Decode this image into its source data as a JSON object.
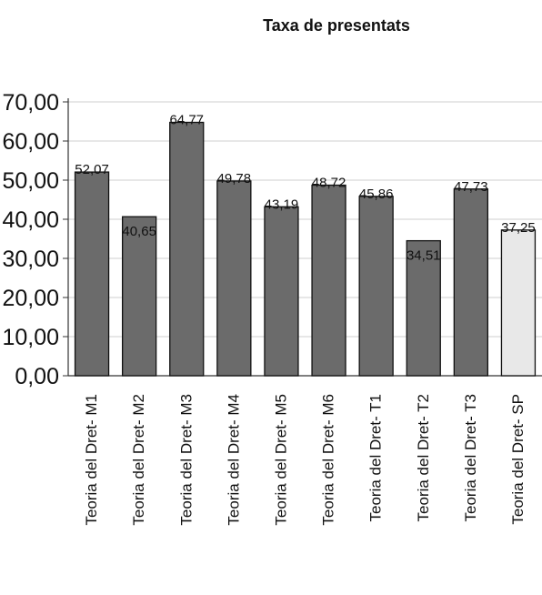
{
  "chart_data": {
    "type": "bar",
    "title": "Taxa de presentats",
    "xlabel": "",
    "ylabel": "",
    "ylim": [
      0,
      70
    ],
    "grid": true,
    "legend": "none",
    "y_ticks": [
      "0,00",
      "10,00",
      "20,00",
      "30,00",
      "40,00",
      "50,00",
      "60,00",
      "70,00"
    ],
    "categories": [
      "Teoria del Dret- M1",
      "Teoria del Dret- M2",
      "Teoria del Dret- M3",
      "Teoria del Dret- M4",
      "Teoria del Dret- M5",
      "Teoria del Dret- M6",
      "Teoria del Dret- T1",
      "Teoria del Dret- T2",
      "Teoria del Dret- T3",
      "Teoria del Dret- SP"
    ],
    "values": [
      52.07,
      40.65,
      64.77,
      49.78,
      43.19,
      48.72,
      45.86,
      34.51,
      47.73,
      37.25
    ],
    "value_labels": [
      "52,07",
      "40,65",
      "64,77",
      "49,78",
      "43,19",
      "48,72",
      "45,86",
      "34,51",
      "47,73",
      "37,25"
    ],
    "label_position": [
      "top",
      "inside",
      "top",
      "top",
      "top",
      "top",
      "top",
      "inside",
      "top",
      "top"
    ],
    "bar_colors": [
      "#6b6b6b",
      "#6b6b6b",
      "#6b6b6b",
      "#6b6b6b",
      "#6b6b6b",
      "#6b6b6b",
      "#6b6b6b",
      "#6b6b6b",
      "#6b6b6b",
      "#e8e8e8"
    ],
    "edge_color": "#111111",
    "grid_color": "#cfcfcf"
  }
}
